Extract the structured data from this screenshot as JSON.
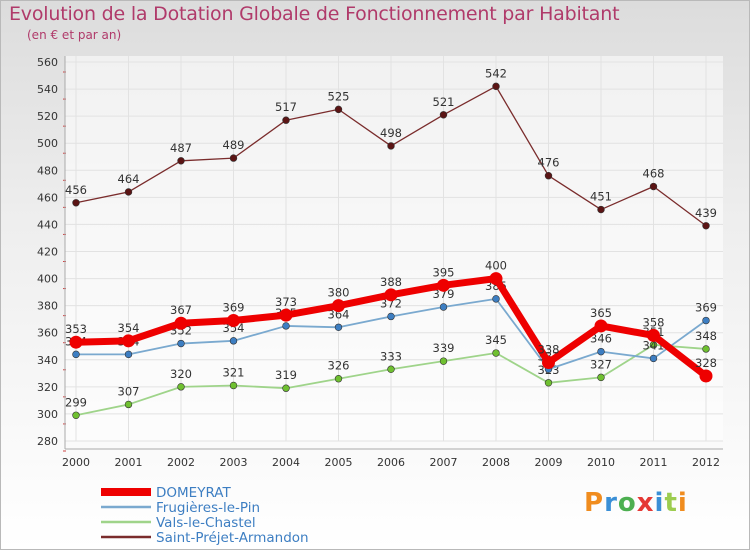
{
  "title": "Evolution de la Dotation Globale de Fonctionnement par Habitant",
  "subtitle": "(en € et par an)",
  "logo": {
    "letters": [
      "P",
      "r",
      "o",
      "x",
      "i",
      "t",
      "i"
    ],
    "colors": [
      "#f08c1e",
      "#3a8fd6",
      "#4caf50",
      "#e53935",
      "#3a8fd6",
      "#9ccc4f",
      "#f08c1e"
    ]
  },
  "chart_data": {
    "type": "line",
    "title": "Evolution de la Dotation Globale de Fonctionnement par Habitant",
    "subtitle": "(en € et par an)",
    "xlabel": "",
    "ylabel": "",
    "ylim": [
      280,
      560
    ],
    "yticks": [
      "280",
      "300",
      "320",
      "340",
      "360",
      "380",
      "400",
      "420",
      "440",
      "460",
      "480",
      "500",
      "520",
      "540",
      "560"
    ],
    "categories": [
      "2000",
      "2001",
      "2002",
      "2003",
      "2004",
      "2005",
      "2006",
      "2007",
      "2008",
      "2009",
      "2010",
      "2011",
      "2012"
    ],
    "legend_position": "bottom-left",
    "series": [
      {
        "name": "Saint-Préjet-Armandon",
        "color": "#7a2c2c",
        "marker": "#5b1414",
        "width": 1.3,
        "label_pos": "above",
        "values": [
          456,
          464,
          487,
          489,
          517,
          525,
          498,
          521,
          542,
          476,
          451,
          468,
          439
        ],
        "labels": [
          "456",
          "464",
          "487",
          "489",
          "517",
          "525",
          "498",
          "521",
          "542",
          "476",
          "451",
          "468",
          "439"
        ]
      },
      {
        "name": "Vals-le-Chastel",
        "color": "#9fd48a",
        "marker": "#6fc030",
        "width": 1.8,
        "label_pos": "above",
        "values": [
          299,
          307,
          320,
          321,
          319,
          326,
          333,
          339,
          345,
          323,
          327,
          351,
          348
        ],
        "labels": [
          "299",
          "307",
          "320",
          "321",
          "319",
          "326",
          "333",
          "339",
          "345",
          "323",
          "327",
          "351",
          "348"
        ]
      },
      {
        "name": "Frugières-le-Pin",
        "color": "#7aa9cf",
        "marker": "#3d7ec2",
        "width": 1.8,
        "label_pos": "above",
        "values": [
          344,
          344,
          352,
          354,
          365,
          364,
          372,
          379,
          385,
          333,
          346,
          341,
          369
        ],
        "labels": [
          "344",
          "344",
          "352",
          "354",
          "365",
          "364",
          "372",
          "379",
          "385",
          "333",
          "346",
          "341",
          "369"
        ]
      },
      {
        "name": "DOMEYRAT",
        "color": "#ee0000",
        "marker": "#ee0000",
        "width": 7,
        "label_pos": "above",
        "values": [
          353,
          354,
          367,
          369,
          373,
          380,
          388,
          395,
          400,
          338,
          365,
          358,
          328
        ],
        "labels": [
          "353",
          "354",
          "367",
          "369",
          "373",
          "380",
          "388",
          "395",
          "400",
          "338",
          "365",
          "358",
          "328"
        ]
      }
    ],
    "legend": [
      "DOMEYRAT",
      "Frugières-le-Pin",
      "Vals-le-Chastel",
      "Saint-Préjet-Armandon"
    ]
  }
}
